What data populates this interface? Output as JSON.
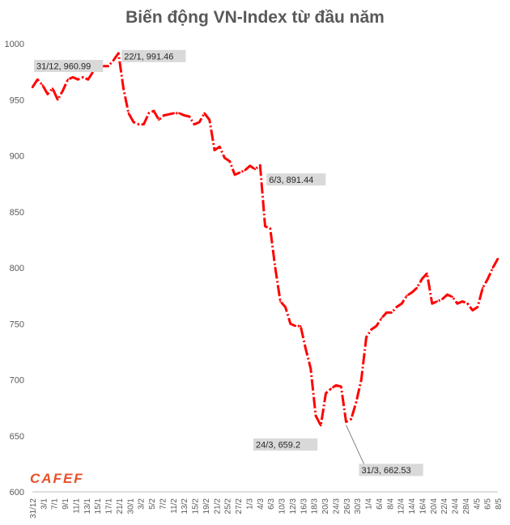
{
  "chart_data": {
    "type": "line",
    "title": "Biến động VN-Index từ đầu năm",
    "xlabel": "",
    "ylabel": "",
    "ylim": [
      600,
      1000
    ],
    "yticks": [
      600,
      650,
      700,
      750,
      800,
      850,
      900,
      950,
      1000
    ],
    "grid": false,
    "series_color": "#ff0000",
    "x_tick_labels": [
      "31/12",
      "3/1",
      "7/1",
      "9/1",
      "11/1",
      "13/1",
      "15/1",
      "17/1",
      "21/1",
      "30/1",
      "3/2",
      "5/2",
      "7/2",
      "11/2",
      "13/2",
      "15/2",
      "19/2",
      "21/2",
      "25/2",
      "27/2",
      "1/3",
      "4/3",
      "6/3",
      "10/3",
      "12/3",
      "16/3",
      "18/3",
      "20/3",
      "24/3",
      "26/3",
      "30/3",
      "1/4",
      "6/4",
      "8/4",
      "12/4",
      "14/4",
      "16/4",
      "20/4",
      "22/4",
      "24/4",
      "28/4",
      "4/5",
      "6/5",
      "8/5"
    ],
    "values": [
      960.99,
      968,
      963,
      955,
      960,
      950,
      958,
      968,
      970,
      968,
      970,
      968,
      975,
      978,
      980,
      980,
      985,
      991.46,
      960,
      938,
      930,
      928,
      928,
      938,
      940,
      932,
      936,
      937,
      938,
      938,
      936,
      935,
      928,
      930,
      938,
      932,
      905,
      908,
      898,
      895,
      883,
      885,
      887,
      891,
      888,
      891.44,
      837,
      835,
      800,
      770,
      765,
      750,
      748,
      748,
      728,
      710,
      668,
      659.2,
      688,
      692,
      695,
      694,
      662.53,
      665,
      680,
      700,
      738,
      745,
      748,
      755,
      760,
      760,
      765,
      768,
      775,
      778,
      782,
      790,
      795,
      768,
      770,
      772,
      776,
      774,
      768,
      770,
      768,
      762,
      765,
      782,
      790,
      800,
      808
    ],
    "annotations": [
      {
        "label": "31/12, 960.99",
        "index": 0
      },
      {
        "label": "22/1, 991.46",
        "index": 17
      },
      {
        "label": "6/3, 891.44",
        "index": 45
      },
      {
        "label": "24/3,  659.2",
        "index": 57
      },
      {
        "label": "31/3, 662.53",
        "index": 62
      }
    ]
  },
  "logo": {
    "text": "CAFEF"
  }
}
